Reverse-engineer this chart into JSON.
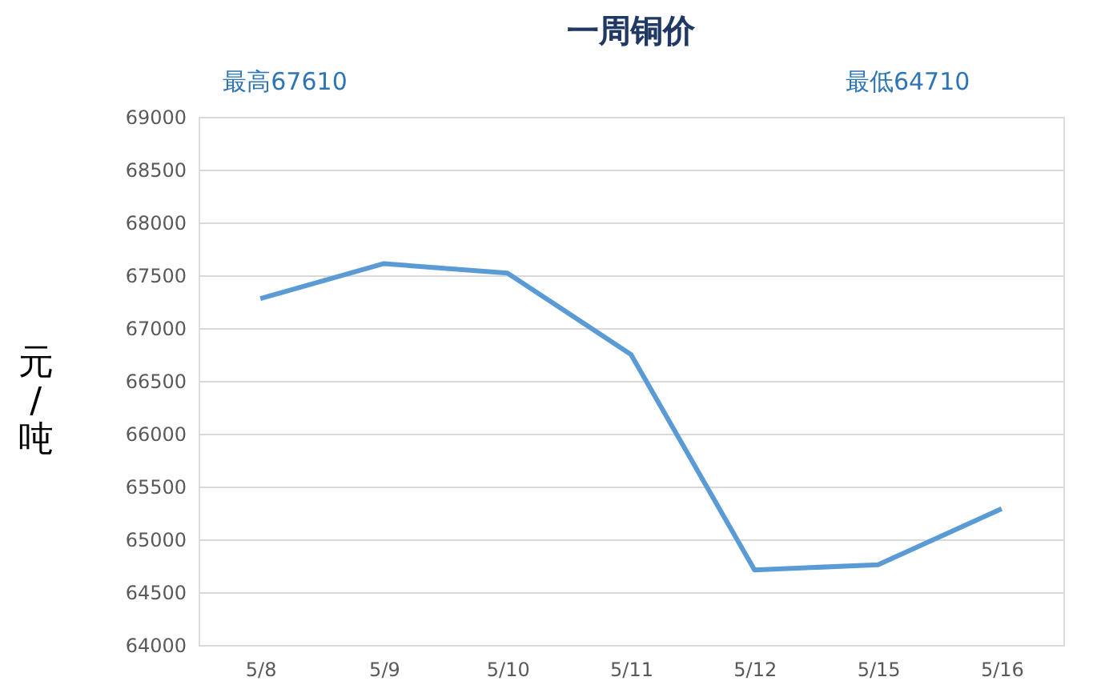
{
  "chart_data": {
    "type": "line",
    "title": "一周铜价",
    "ylabel": "元/吨",
    "annotations": [
      "最高67610",
      "最低64710"
    ],
    "categories": [
      "5/8",
      "5/9",
      "5/10",
      "5/11",
      "5/12",
      "5/15",
      "5/16"
    ],
    "series": [
      {
        "color": "#5b9bd5",
        "values": [
          67280,
          67610,
          67520,
          66750,
          64710,
          64760,
          65290
        ]
      }
    ],
    "ylim": [
      64000,
      69000
    ],
    "yticks": [
      64000,
      64500,
      65000,
      65500,
      66000,
      66500,
      67000,
      67500,
      68000,
      68500,
      69000
    ],
    "grid": "y",
    "marker": "none",
    "line_style": "solid"
  }
}
